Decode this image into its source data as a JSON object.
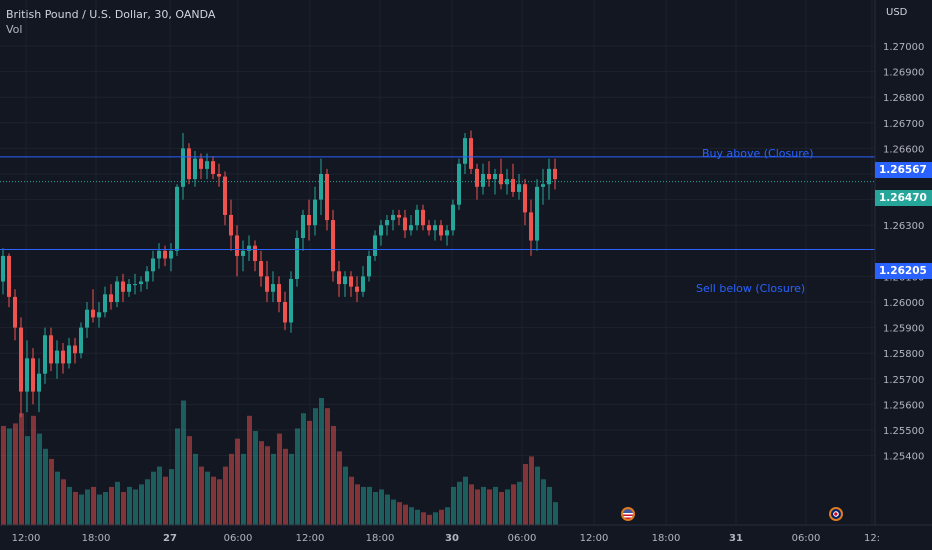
{
  "legend": {
    "symbol": "British Pound / U.S. Dollar, 30, OANDA",
    "volume_label": "Vol"
  },
  "axis": {
    "currency": "USD",
    "price_ticks": [
      "1.27000",
      "1.26900",
      "1.26800",
      "1.26700",
      "1.26600",
      "1.26500",
      "1.26400",
      "1.26300",
      "1.26100",
      "1.26000",
      "1.25900",
      "1.25800",
      "1.25700",
      "1.25600",
      "1.25500",
      "1.25400"
    ],
    "time_ticks": [
      "12:00",
      "18:00",
      "27",
      "06:00",
      "12:00",
      "18:00",
      "30",
      "06:00",
      "12:00",
      "18:00",
      "31",
      "06:00",
      "12:"
    ]
  },
  "levels": {
    "buy": {
      "label": "Buy above (Closure)",
      "price": "1.26567"
    },
    "sell": {
      "label": "Sell below (Closure)",
      "price": "1.26205"
    },
    "current": {
      "price": "1.26470"
    }
  },
  "colors": {
    "up": "#26a69a",
    "down": "#ef5350",
    "level_line": "#2962ff",
    "background": "#131722"
  },
  "icons": {
    "us_event": "us-flag-icon",
    "uk_event": "uk-flag-icon"
  },
  "chart_data": {
    "type": "candlestick",
    "title": "British Pound / U.S. Dollar, 30, OANDA",
    "ylim": [
      1.2535,
      1.2715
    ],
    "price_ticks": [
      1.27,
      1.269,
      1.268,
      1.267,
      1.266,
      1.265,
      1.264,
      1.263,
      1.261,
      1.26,
      1.259,
      1.258,
      1.257,
      1.256,
      1.255,
      1.254
    ],
    "candles": [
      {
        "o": 1.2608,
        "h": 1.2621,
        "l": 1.2603,
        "c": 1.2618
      },
      {
        "o": 1.2618,
        "h": 1.2619,
        "l": 1.2598,
        "c": 1.2602
      },
      {
        "o": 1.2602,
        "h": 1.2605,
        "l": 1.2585,
        "c": 1.259
      },
      {
        "o": 1.259,
        "h": 1.2594,
        "l": 1.2555,
        "c": 1.2565
      },
      {
        "o": 1.2565,
        "h": 1.2585,
        "l": 1.2557,
        "c": 1.2578
      },
      {
        "o": 1.2578,
        "h": 1.2582,
        "l": 1.256,
        "c": 1.2565
      },
      {
        "o": 1.2565,
        "h": 1.2578,
        "l": 1.2557,
        "c": 1.2572
      },
      {
        "o": 1.2572,
        "h": 1.259,
        "l": 1.2568,
        "c": 1.2587
      },
      {
        "o": 1.2587,
        "h": 1.259,
        "l": 1.2573,
        "c": 1.2576
      },
      {
        "o": 1.2576,
        "h": 1.2585,
        "l": 1.257,
        "c": 1.2581
      },
      {
        "o": 1.2581,
        "h": 1.2584,
        "l": 1.2572,
        "c": 1.2576
      },
      {
        "o": 1.2576,
        "h": 1.2586,
        "l": 1.2574,
        "c": 1.2583
      },
      {
        "o": 1.2583,
        "h": 1.2586,
        "l": 1.2576,
        "c": 1.258
      },
      {
        "o": 1.258,
        "h": 1.2592,
        "l": 1.2578,
        "c": 1.259
      },
      {
        "o": 1.259,
        "h": 1.26,
        "l": 1.2586,
        "c": 1.2597
      },
      {
        "o": 1.2597,
        "h": 1.2605,
        "l": 1.2592,
        "c": 1.2594
      },
      {
        "o": 1.2594,
        "h": 1.26,
        "l": 1.259,
        "c": 1.2596
      },
      {
        "o": 1.2596,
        "h": 1.2606,
        "l": 1.2594,
        "c": 1.2603
      },
      {
        "o": 1.2603,
        "h": 1.2607,
        "l": 1.2597,
        "c": 1.26
      },
      {
        "o": 1.26,
        "h": 1.261,
        "l": 1.2598,
        "c": 1.2608
      },
      {
        "o": 1.2608,
        "h": 1.2611,
        "l": 1.26,
        "c": 1.2604
      },
      {
        "o": 1.2604,
        "h": 1.2609,
        "l": 1.2602,
        "c": 1.2607
      },
      {
        "o": 1.2607,
        "h": 1.2611,
        "l": 1.2603,
        "c": 1.2607
      },
      {
        "o": 1.2607,
        "h": 1.261,
        "l": 1.2604,
        "c": 1.2608
      },
      {
        "o": 1.2608,
        "h": 1.2614,
        "l": 1.2605,
        "c": 1.2612
      },
      {
        "o": 1.2612,
        "h": 1.262,
        "l": 1.2608,
        "c": 1.2617
      },
      {
        "o": 1.2617,
        "h": 1.2623,
        "l": 1.2613,
        "c": 1.262
      },
      {
        "o": 1.262,
        "h": 1.2622,
        "l": 1.2614,
        "c": 1.2617
      },
      {
        "o": 1.2617,
        "h": 1.2623,
        "l": 1.2612,
        "c": 1.262
      },
      {
        "o": 1.262,
        "h": 1.2646,
        "l": 1.2618,
        "c": 1.2645
      },
      {
        "o": 1.2645,
        "h": 1.2666,
        "l": 1.264,
        "c": 1.266
      },
      {
        "o": 1.266,
        "h": 1.2662,
        "l": 1.2646,
        "c": 1.2648
      },
      {
        "o": 1.2648,
        "h": 1.2659,
        "l": 1.2645,
        "c": 1.2656
      },
      {
        "o": 1.2656,
        "h": 1.2658,
        "l": 1.2648,
        "c": 1.2652
      },
      {
        "o": 1.2652,
        "h": 1.2658,
        "l": 1.2648,
        "c": 1.2655
      },
      {
        "o": 1.2655,
        "h": 1.2657,
        "l": 1.2648,
        "c": 1.265
      },
      {
        "o": 1.265,
        "h": 1.2654,
        "l": 1.2645,
        "c": 1.2649
      },
      {
        "o": 1.2649,
        "h": 1.2651,
        "l": 1.263,
        "c": 1.2634
      },
      {
        "o": 1.2634,
        "h": 1.264,
        "l": 1.262,
        "c": 1.2626
      },
      {
        "o": 1.2626,
        "h": 1.263,
        "l": 1.261,
        "c": 1.2618
      },
      {
        "o": 1.2618,
        "h": 1.2624,
        "l": 1.2612,
        "c": 1.262
      },
      {
        "o": 1.262,
        "h": 1.2626,
        "l": 1.2616,
        "c": 1.2622
      },
      {
        "o": 1.2622,
        "h": 1.2624,
        "l": 1.2612,
        "c": 1.2616
      },
      {
        "o": 1.2616,
        "h": 1.262,
        "l": 1.2606,
        "c": 1.261
      },
      {
        "o": 1.261,
        "h": 1.2616,
        "l": 1.26,
        "c": 1.2604
      },
      {
        "o": 1.2604,
        "h": 1.2612,
        "l": 1.26,
        "c": 1.2607
      },
      {
        "o": 1.2607,
        "h": 1.261,
        "l": 1.2596,
        "c": 1.26
      },
      {
        "o": 1.26,
        "h": 1.2604,
        "l": 1.2589,
        "c": 1.2592
      },
      {
        "o": 1.2592,
        "h": 1.2612,
        "l": 1.2588,
        "c": 1.2609
      },
      {
        "o": 1.2609,
        "h": 1.2628,
        "l": 1.2606,
        "c": 1.2625
      },
      {
        "o": 1.2625,
        "h": 1.2636,
        "l": 1.262,
        "c": 1.2634
      },
      {
        "o": 1.2634,
        "h": 1.264,
        "l": 1.2624,
        "c": 1.263
      },
      {
        "o": 1.263,
        "h": 1.2645,
        "l": 1.2626,
        "c": 1.264
      },
      {
        "o": 1.264,
        "h": 1.2656,
        "l": 1.2634,
        "c": 1.265
      },
      {
        "o": 1.265,
        "h": 1.2652,
        "l": 1.2628,
        "c": 1.2632
      },
      {
        "o": 1.2632,
        "h": 1.2636,
        "l": 1.2608,
        "c": 1.2612
      },
      {
        "o": 1.2612,
        "h": 1.2616,
        "l": 1.2602,
        "c": 1.2607
      },
      {
        "o": 1.2607,
        "h": 1.2612,
        "l": 1.2602,
        "c": 1.261
      },
      {
        "o": 1.261,
        "h": 1.2612,
        "l": 1.2602,
        "c": 1.2606
      },
      {
        "o": 1.2606,
        "h": 1.261,
        "l": 1.26,
        "c": 1.2604
      },
      {
        "o": 1.2604,
        "h": 1.2614,
        "l": 1.2602,
        "c": 1.261
      },
      {
        "o": 1.261,
        "h": 1.262,
        "l": 1.2608,
        "c": 1.2618
      },
      {
        "o": 1.2618,
        "h": 1.2628,
        "l": 1.2616,
        "c": 1.2626
      },
      {
        "o": 1.2626,
        "h": 1.2632,
        "l": 1.2622,
        "c": 1.263
      },
      {
        "o": 1.263,
        "h": 1.2634,
        "l": 1.2626,
        "c": 1.2632
      },
      {
        "o": 1.2632,
        "h": 1.2636,
        "l": 1.2628,
        "c": 1.2634
      },
      {
        "o": 1.2634,
        "h": 1.2636,
        "l": 1.263,
        "c": 1.2633
      },
      {
        "o": 1.2633,
        "h": 1.2636,
        "l": 1.2625,
        "c": 1.2628
      },
      {
        "o": 1.2628,
        "h": 1.2634,
        "l": 1.2626,
        "c": 1.263
      },
      {
        "o": 1.263,
        "h": 1.2638,
        "l": 1.2628,
        "c": 1.2636
      },
      {
        "o": 1.2636,
        "h": 1.2638,
        "l": 1.2628,
        "c": 1.263
      },
      {
        "o": 1.263,
        "h": 1.2632,
        "l": 1.2626,
        "c": 1.2628
      },
      {
        "o": 1.2628,
        "h": 1.2632,
        "l": 1.2624,
        "c": 1.263
      },
      {
        "o": 1.263,
        "h": 1.2632,
        "l": 1.2624,
        "c": 1.2626
      },
      {
        "o": 1.2626,
        "h": 1.263,
        "l": 1.2622,
        "c": 1.2628
      },
      {
        "o": 1.2628,
        "h": 1.264,
        "l": 1.2626,
        "c": 1.2638
      },
      {
        "o": 1.2638,
        "h": 1.2656,
        "l": 1.2636,
        "c": 1.2654
      },
      {
        "o": 1.2654,
        "h": 1.2666,
        "l": 1.265,
        "c": 1.2664
      },
      {
        "o": 1.2664,
        "h": 1.2667,
        "l": 1.265,
        "c": 1.2652
      },
      {
        "o": 1.2652,
        "h": 1.2654,
        "l": 1.264,
        "c": 1.2645
      },
      {
        "o": 1.2645,
        "h": 1.2654,
        "l": 1.2642,
        "c": 1.265
      },
      {
        "o": 1.265,
        "h": 1.2655,
        "l": 1.2645,
        "c": 1.2648
      },
      {
        "o": 1.2648,
        "h": 1.2652,
        "l": 1.2642,
        "c": 1.265
      },
      {
        "o": 1.265,
        "h": 1.2656,
        "l": 1.2644,
        "c": 1.2646
      },
      {
        "o": 1.2646,
        "h": 1.2652,
        "l": 1.2642,
        "c": 1.2648
      },
      {
        "o": 1.2648,
        "h": 1.2654,
        "l": 1.2641,
        "c": 1.2643
      },
      {
        "o": 1.2643,
        "h": 1.265,
        "l": 1.264,
        "c": 1.2646
      },
      {
        "o": 1.2646,
        "h": 1.2648,
        "l": 1.263,
        "c": 1.2635
      },
      {
        "o": 1.2635,
        "h": 1.264,
        "l": 1.2618,
        "c": 1.2624
      },
      {
        "o": 1.2624,
        "h": 1.2648,
        "l": 1.262,
        "c": 1.2645
      },
      {
        "o": 1.2645,
        "h": 1.2652,
        "l": 1.2638,
        "c": 1.2646
      },
      {
        "o": 1.2646,
        "h": 1.2656,
        "l": 1.264,
        "c": 1.2652
      },
      {
        "o": 1.2652,
        "h": 1.2656,
        "l": 1.2644,
        "c": 1.2648
      }
    ],
    "volumes": [
      {
        "v": 780,
        "up": false
      },
      {
        "v": 760,
        "up": true
      },
      {
        "v": 800,
        "up": false
      },
      {
        "v": 880,
        "up": false
      },
      {
        "v": 700,
        "up": true
      },
      {
        "v": 860,
        "up": false
      },
      {
        "v": 720,
        "up": true
      },
      {
        "v": 600,
        "up": true
      },
      {
        "v": 520,
        "up": false
      },
      {
        "v": 420,
        "up": true
      },
      {
        "v": 360,
        "up": false
      },
      {
        "v": 300,
        "up": true
      },
      {
        "v": 260,
        "up": false
      },
      {
        "v": 240,
        "up": true
      },
      {
        "v": 280,
        "up": true
      },
      {
        "v": 300,
        "up": false
      },
      {
        "v": 240,
        "up": true
      },
      {
        "v": 260,
        "up": true
      },
      {
        "v": 300,
        "up": false
      },
      {
        "v": 340,
        "up": true
      },
      {
        "v": 260,
        "up": false
      },
      {
        "v": 300,
        "up": true
      },
      {
        "v": 280,
        "up": true
      },
      {
        "v": 320,
        "up": true
      },
      {
        "v": 360,
        "up": true
      },
      {
        "v": 420,
        "up": true
      },
      {
        "v": 460,
        "up": true
      },
      {
        "v": 380,
        "up": false
      },
      {
        "v": 440,
        "up": true
      },
      {
        "v": 760,
        "up": true
      },
      {
        "v": 980,
        "up": true
      },
      {
        "v": 700,
        "up": false
      },
      {
        "v": 560,
        "up": true
      },
      {
        "v": 460,
        "up": false
      },
      {
        "v": 420,
        "up": true
      },
      {
        "v": 380,
        "up": false
      },
      {
        "v": 360,
        "up": false
      },
      {
        "v": 460,
        "up": false
      },
      {
        "v": 560,
        "up": false
      },
      {
        "v": 680,
        "up": false
      },
      {
        "v": 560,
        "up": true
      },
      {
        "v": 860,
        "up": false
      },
      {
        "v": 740,
        "up": true
      },
      {
        "v": 660,
        "up": false
      },
      {
        "v": 620,
        "up": false
      },
      {
        "v": 560,
        "up": true
      },
      {
        "v": 720,
        "up": false
      },
      {
        "v": 600,
        "up": false
      },
      {
        "v": 560,
        "up": true
      },
      {
        "v": 760,
        "up": true
      },
      {
        "v": 880,
        "up": true
      },
      {
        "v": 820,
        "up": false
      },
      {
        "v": 920,
        "up": true
      },
      {
        "v": 1000,
        "up": true
      },
      {
        "v": 920,
        "up": false
      },
      {
        "v": 780,
        "up": false
      },
      {
        "v": 580,
        "up": false
      },
      {
        "v": 460,
        "up": true
      },
      {
        "v": 380,
        "up": false
      },
      {
        "v": 320,
        "up": false
      },
      {
        "v": 300,
        "up": true
      },
      {
        "v": 300,
        "up": true
      },
      {
        "v": 260,
        "up": true
      },
      {
        "v": 280,
        "up": true
      },
      {
        "v": 240,
        "up": true
      },
      {
        "v": 200,
        "up": true
      },
      {
        "v": 180,
        "up": false
      },
      {
        "v": 160,
        "up": false
      },
      {
        "v": 140,
        "up": true
      },
      {
        "v": 120,
        "up": true
      },
      {
        "v": 100,
        "up": false
      },
      {
        "v": 80,
        "up": false
      },
      {
        "v": 100,
        "up": true
      },
      {
        "v": 120,
        "up": false
      },
      {
        "v": 140,
        "up": true
      },
      {
        "v": 300,
        "up": true
      },
      {
        "v": 340,
        "up": true
      },
      {
        "v": 380,
        "up": true
      },
      {
        "v": 320,
        "up": false
      },
      {
        "v": 280,
        "up": false
      },
      {
        "v": 300,
        "up": true
      },
      {
        "v": 280,
        "up": false
      },
      {
        "v": 300,
        "up": true
      },
      {
        "v": 260,
        "up": false
      },
      {
        "v": 280,
        "up": true
      },
      {
        "v": 320,
        "up": false
      },
      {
        "v": 340,
        "up": true
      },
      {
        "v": 480,
        "up": false
      },
      {
        "v": 540,
        "up": false
      },
      {
        "v": 460,
        "up": true
      },
      {
        "v": 360,
        "up": true
      },
      {
        "v": 300,
        "up": true
      },
      {
        "v": 180,
        "up": true
      }
    ],
    "annotations": [
      {
        "text": "Buy above (Closure)",
        "price": 1.26567
      },
      {
        "text": "Sell below (Closure)",
        "price": 1.26205
      }
    ]
  }
}
